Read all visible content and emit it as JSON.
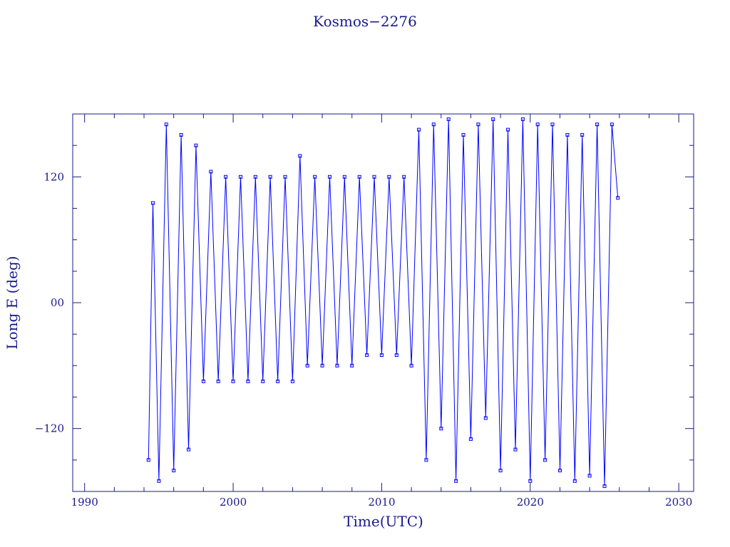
{
  "chart_data": {
    "type": "scatter",
    "title": "Kosmos−2276",
    "xlabel": "Time(UTC)",
    "ylabel": "Long E (deg)",
    "xlim": [
      1989.2,
      2031.0
    ],
    "ylim": [
      -180,
      180
    ],
    "x_ticks": [
      1990,
      2000,
      2010,
      2020,
      2030
    ],
    "x_tick_labels": [
      "1990",
      "2000",
      "2010",
      "2020",
      "2030"
    ],
    "y_ticks": [
      -120,
      0,
      120
    ],
    "y_tick_labels": [
      "−120",
      "00",
      "120"
    ],
    "grid": false,
    "legend": "none",
    "colors": {
      "axis": "#1a1a8c",
      "data": "#0000ff"
    },
    "series": [
      {
        "values_note": "",
        "x": [
          1994.3,
          1994.6,
          1995.0,
          1995.5,
          1996.0,
          1996.5,
          1997.0,
          1997.5,
          1998.0,
          1998.5,
          1999.0,
          1999.5,
          2000.0,
          2000.5,
          2001.0,
          2001.5,
          2002.0,
          2002.5,
          2003.0,
          2003.5,
          2004.0,
          2004.5,
          2005.0,
          2005.5,
          2006.0,
          2006.5,
          2007.0,
          2007.5,
          2008.0,
          2008.5,
          2009.0,
          2009.5,
          2010.0,
          2010.5,
          2011.0,
          2011.5,
          2012.0,
          2012.5,
          2013.0,
          2013.5,
          2014.0,
          2014.5,
          2015.0,
          2015.5,
          2016.0,
          2016.5,
          2017.0,
          2017.5,
          2018.0,
          2018.5,
          2019.0,
          2019.5,
          2020.0,
          2020.5,
          2021.0,
          2021.5,
          2022.0,
          2022.5,
          2023.0,
          2023.5,
          2024.0,
          2024.5,
          2025.0,
          2025.5,
          2025.9
        ],
        "y": [
          -150,
          95,
          -170,
          170,
          -160,
          160,
          -140,
          150,
          -75,
          125,
          -75,
          120,
          -75,
          120,
          -75,
          120,
          -75,
          120,
          -75,
          120,
          -75,
          140,
          -60,
          120,
          -60,
          120,
          -60,
          120,
          -60,
          120,
          -50,
          120,
          -50,
          120,
          -50,
          120,
          -60,
          165,
          -150,
          170,
          -120,
          175,
          -170,
          160,
          -130,
          170,
          -110,
          175,
          -160,
          165,
          -140,
          175,
          -170,
          170,
          -150,
          170,
          -160,
          160,
          -170,
          160,
          -165,
          170,
          -175,
          170,
          100
        ]
      }
    ]
  }
}
